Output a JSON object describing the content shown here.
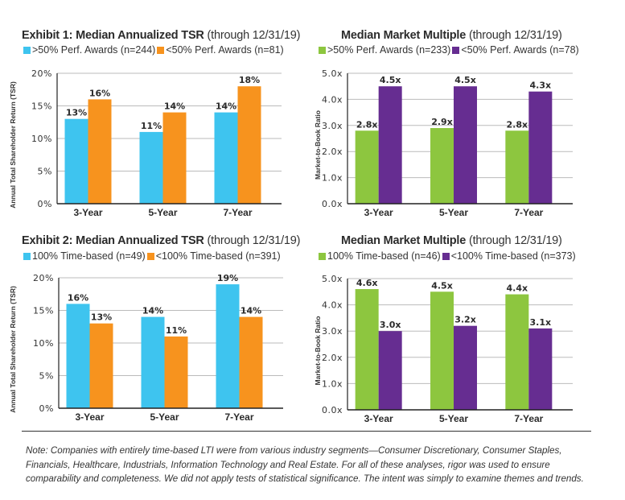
{
  "colors": {
    "blue": "#3ec4ef",
    "orange": "#f7931e",
    "green": "#8dc63f",
    "purple": "#662d91",
    "grid": "#bbbbbb",
    "axis": "#222222"
  },
  "chart_data": [
    {
      "id": "exhibit1-tsr",
      "type": "bar",
      "title": "Exhibit 1: Median Annualized TSR",
      "subtitle": "(through 12/31/19)",
      "ylabel": "Annual Total Shareholder Return (TSR)",
      "xlabel": "",
      "categories": [
        "3-Year",
        "5-Year",
        "7-Year"
      ],
      "yticks": [
        "0%",
        "5%",
        "10%",
        "15%",
        "20%"
      ],
      "ytick_values": [
        0,
        5,
        10,
        15,
        20
      ],
      "ylim": [
        0,
        20
      ],
      "grid": true,
      "legend_position": "top-left",
      "series": [
        {
          "name": ">50% Perf. Awards (n=244)",
          "color": "#3ec4ef",
          "values": [
            13,
            11,
            14
          ],
          "labels": [
            "13%",
            "11%",
            "14%"
          ]
        },
        {
          "name": "<50% Perf. Awards (n=81)",
          "color": "#f7931e",
          "values": [
            16,
            14,
            18
          ],
          "labels": [
            "16%",
            "14%",
            "18%"
          ]
        }
      ]
    },
    {
      "id": "exhibit1-multiple",
      "type": "bar",
      "title": "Median Market Multiple",
      "subtitle": "(through 12/31/19)",
      "ylabel": "Market-to-Book Ratio",
      "xlabel": "",
      "categories": [
        "3-Year",
        "5-Year",
        "7-Year"
      ],
      "yticks": [
        "0.0x",
        "1.0x",
        "2.0x",
        "3.0x",
        "4.0x",
        "5.0x"
      ],
      "ytick_values": [
        0,
        1,
        2,
        3,
        4,
        5
      ],
      "ylim": [
        0,
        5
      ],
      "grid": true,
      "legend_position": "top-left",
      "series": [
        {
          "name": ">50% Perf. Awards (n=233)",
          "color": "#8dc63f",
          "values": [
            2.8,
            2.9,
            2.8
          ],
          "labels": [
            "2.8x",
            "2.9x",
            "2.8x"
          ]
        },
        {
          "name": "<50% Perf. Awards (n=78)",
          "color": "#662d91",
          "values": [
            4.5,
            4.5,
            4.3
          ],
          "labels": [
            "4.5x",
            "4.5x",
            "4.3x"
          ]
        }
      ]
    },
    {
      "id": "exhibit2-tsr",
      "type": "bar",
      "title": "Exhibit 2: Median Annualized TSR",
      "subtitle": "(through 12/31/19)",
      "ylabel": "Annual Total Shareholder Return (TSR)",
      "xlabel": "",
      "categories": [
        "3-Year",
        "5-Year",
        "7-Year"
      ],
      "yticks": [
        "0%",
        "5%",
        "10%",
        "15%",
        "20%"
      ],
      "ytick_values": [
        0,
        5,
        10,
        15,
        20
      ],
      "ylim": [
        0,
        20
      ],
      "grid": true,
      "legend_position": "top-left",
      "series": [
        {
          "name": "100% Time-based (n=49)",
          "color": "#3ec4ef",
          "values": [
            16,
            14,
            19
          ],
          "labels": [
            "16%",
            "14%",
            "19%"
          ]
        },
        {
          "name": "<100% Time-based (n=391)",
          "color": "#f7931e",
          "values": [
            13,
            11,
            14
          ],
          "labels": [
            "13%",
            "11%",
            "14%"
          ]
        }
      ]
    },
    {
      "id": "exhibit2-multiple",
      "type": "bar",
      "title": "Median Market Multiple",
      "subtitle": "(through 12/31/19)",
      "ylabel": "Market-to-Book Ratio",
      "xlabel": "",
      "categories": [
        "3-Year",
        "5-Year",
        "7-Year"
      ],
      "yticks": [
        "0.0x",
        "1.0x",
        "2.0x",
        "3.0x",
        "4.0x",
        "5.0x"
      ],
      "ytick_values": [
        0,
        1,
        2,
        3,
        4,
        5
      ],
      "ylim": [
        0,
        5
      ],
      "grid": true,
      "legend_position": "top-left",
      "series": [
        {
          "name": "100% Time-based (n=46)",
          "color": "#8dc63f",
          "values": [
            4.6,
            4.5,
            4.4
          ],
          "labels": [
            "4.6x",
            "4.5x",
            "4.4x"
          ]
        },
        {
          "name": "<100% Time-based (n=373)",
          "color": "#662d91",
          "values": [
            3.0,
            3.2,
            3.1
          ],
          "labels": [
            "3.0x",
            "3.2x",
            "3.1x"
          ]
        }
      ]
    }
  ],
  "note": "Note: Companies with entirely time-based LTI were from various industry segments—Consumer Discretionary, Consumer Staples, Financials, Healthcare, Industrials, Information Technology and Real Estate. For all of these analyses, rigor was used to ensure comparability and completeness. We did not apply tests of statistical significance. The intent was simply to examine themes and trends."
}
